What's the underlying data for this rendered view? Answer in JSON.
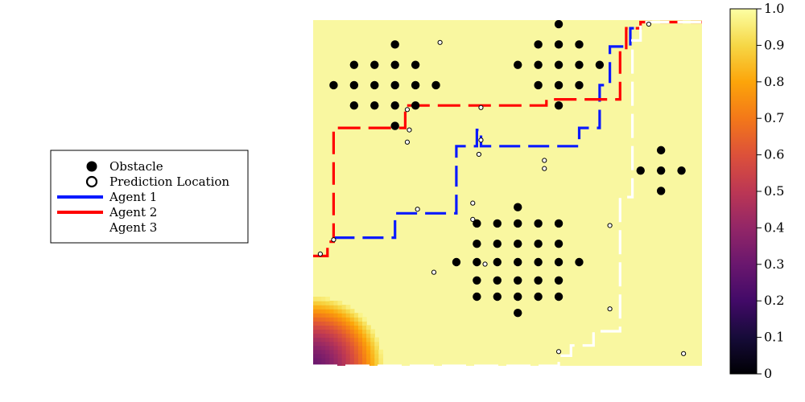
{
  "chart_data": {
    "type": "heatmap",
    "title": "",
    "xlabel": "",
    "ylabel": "",
    "xlim": [
      0,
      19
    ],
    "ylim": [
      0,
      17
    ],
    "grid": false,
    "legend_placement": "left",
    "field": {
      "description_colormap": "inferno",
      "value_range": [
        0,
        1
      ],
      "background_value": 0.97,
      "low_value_center": [
        0,
        0
      ],
      "low_value_radius": 3.4
    },
    "colorbar": {
      "min": 0,
      "max": 1,
      "ticks": [
        "0",
        "0.1",
        "0.2",
        "0.3",
        "0.4",
        "0.5",
        "0.6",
        "0.7",
        "0.8",
        "0.9",
        "1.0"
      ]
    },
    "legend": {
      "obstacle": "Obstacle",
      "prediction_location": "Prediction Location",
      "agent1": "Agent 1",
      "agent2": "Agent 2",
      "agent3": "Agent 3"
    },
    "obstacles": [
      [
        12,
        16.8
      ],
      [
        4,
        15.8
      ],
      [
        11,
        15.8
      ],
      [
        12,
        15.8
      ],
      [
        13,
        15.8
      ],
      [
        2,
        14.8
      ],
      [
        3,
        14.8
      ],
      [
        4,
        14.8
      ],
      [
        5,
        14.8
      ],
      [
        10,
        14.8
      ],
      [
        11,
        14.8
      ],
      [
        12,
        14.8
      ],
      [
        13,
        14.8
      ],
      [
        14,
        14.8
      ],
      [
        1,
        13.8
      ],
      [
        2,
        13.8
      ],
      [
        3,
        13.8
      ],
      [
        4,
        13.8
      ],
      [
        5,
        13.8
      ],
      [
        6,
        13.8
      ],
      [
        11,
        13.8
      ],
      [
        12,
        13.8
      ],
      [
        13,
        13.8
      ],
      [
        2,
        12.8
      ],
      [
        3,
        12.8
      ],
      [
        4,
        12.8
      ],
      [
        5,
        12.8
      ],
      [
        12,
        12.8
      ],
      [
        4,
        11.8
      ],
      [
        17,
        10.6
      ],
      [
        16,
        9.6
      ],
      [
        17,
        9.6
      ],
      [
        18,
        9.6
      ],
      [
        17,
        8.6
      ],
      [
        10,
        7.8
      ],
      [
        8,
        7.0
      ],
      [
        9,
        7.0
      ],
      [
        10,
        7.0
      ],
      [
        11,
        7.0
      ],
      [
        12,
        7.0
      ],
      [
        8,
        6.0
      ],
      [
        9,
        6.0
      ],
      [
        10,
        6.0
      ],
      [
        11,
        6.0
      ],
      [
        12,
        6.0
      ],
      [
        7,
        5.1
      ],
      [
        8,
        5.1
      ],
      [
        9,
        5.1
      ],
      [
        10,
        5.1
      ],
      [
        11,
        5.1
      ],
      [
        12,
        5.1
      ],
      [
        13,
        5.1
      ],
      [
        8,
        4.2
      ],
      [
        9,
        4.2
      ],
      [
        10,
        4.2
      ],
      [
        11,
        4.2
      ],
      [
        12,
        4.2
      ],
      [
        8,
        3.4
      ],
      [
        9,
        3.4
      ],
      [
        10,
        3.4
      ],
      [
        11,
        3.4
      ],
      [
        12,
        3.4
      ],
      [
        10,
        2.6
      ]
    ],
    "prediction_locations": [
      [
        16.4,
        16.8
      ],
      [
        6.2,
        15.9
      ],
      [
        4.6,
        12.6
      ],
      [
        8.2,
        12.7
      ],
      [
        4.7,
        11.6
      ],
      [
        4.6,
        11.0
      ],
      [
        8.2,
        11.1
      ],
      [
        8.1,
        10.4
      ],
      [
        11.3,
        10.1
      ],
      [
        11.3,
        9.7
      ],
      [
        7.8,
        8.0
      ],
      [
        5.1,
        7.7
      ],
      [
        7.8,
        7.2
      ],
      [
        14.5,
        6.9
      ],
      [
        1.0,
        6.2
      ],
      [
        0.35,
        5.5
      ],
      [
        8.4,
        5.0
      ],
      [
        5.9,
        4.6
      ],
      [
        14.5,
        2.8
      ],
      [
        12.0,
        0.7
      ],
      [
        18.1,
        0.6
      ]
    ],
    "series": [
      {
        "name": "Agent 1",
        "color": "#0a1aff",
        "points": [
          [
            1,
            6.3
          ],
          [
            4,
            6.3
          ],
          [
            4,
            7.5
          ],
          [
            7,
            7.5
          ],
          [
            7,
            10.8
          ],
          [
            8,
            10.8
          ],
          [
            8,
            11.6
          ],
          [
            8.2,
            11.6
          ],
          [
            8.2,
            10.8
          ],
          [
            13,
            10.8
          ],
          [
            13,
            11.7
          ],
          [
            14,
            11.7
          ],
          [
            14,
            13.8
          ],
          [
            14.5,
            13.8
          ],
          [
            14.5,
            15.7
          ],
          [
            15.5,
            15.7
          ],
          [
            15.5,
            16.6
          ],
          [
            16,
            16.6
          ]
        ]
      },
      {
        "name": "Agent 2",
        "color": "#ff0000",
        "points": [
          [
            0,
            5.4
          ],
          [
            0.7,
            5.4
          ],
          [
            0.7,
            6.1
          ],
          [
            1,
            6.1
          ],
          [
            1,
            11.7
          ],
          [
            4.5,
            11.7
          ],
          [
            4.5,
            12.8
          ],
          [
            11.4,
            12.8
          ],
          [
            11.4,
            13.1
          ],
          [
            15,
            13.1
          ],
          [
            15,
            15.5
          ],
          [
            15.3,
            15.5
          ],
          [
            15.3,
            16.6
          ],
          [
            16,
            16.6
          ],
          [
            16,
            16.9
          ],
          [
            19,
            16.9
          ]
        ]
      },
      {
        "name": "Agent 3",
        "color": "#ffffff",
        "points": [
          [
            0,
            0
          ],
          [
            12,
            0
          ],
          [
            12,
            0.5
          ],
          [
            12.6,
            0.5
          ],
          [
            12.6,
            1.0
          ],
          [
            13.7,
            1.0
          ],
          [
            13.7,
            1.7
          ],
          [
            15,
            1.7
          ],
          [
            15,
            8.3
          ],
          [
            15.6,
            8.3
          ],
          [
            15.6,
            16.0
          ],
          [
            16,
            16.0
          ],
          [
            16,
            16.9
          ],
          [
            19,
            16.9
          ]
        ]
      }
    ]
  }
}
